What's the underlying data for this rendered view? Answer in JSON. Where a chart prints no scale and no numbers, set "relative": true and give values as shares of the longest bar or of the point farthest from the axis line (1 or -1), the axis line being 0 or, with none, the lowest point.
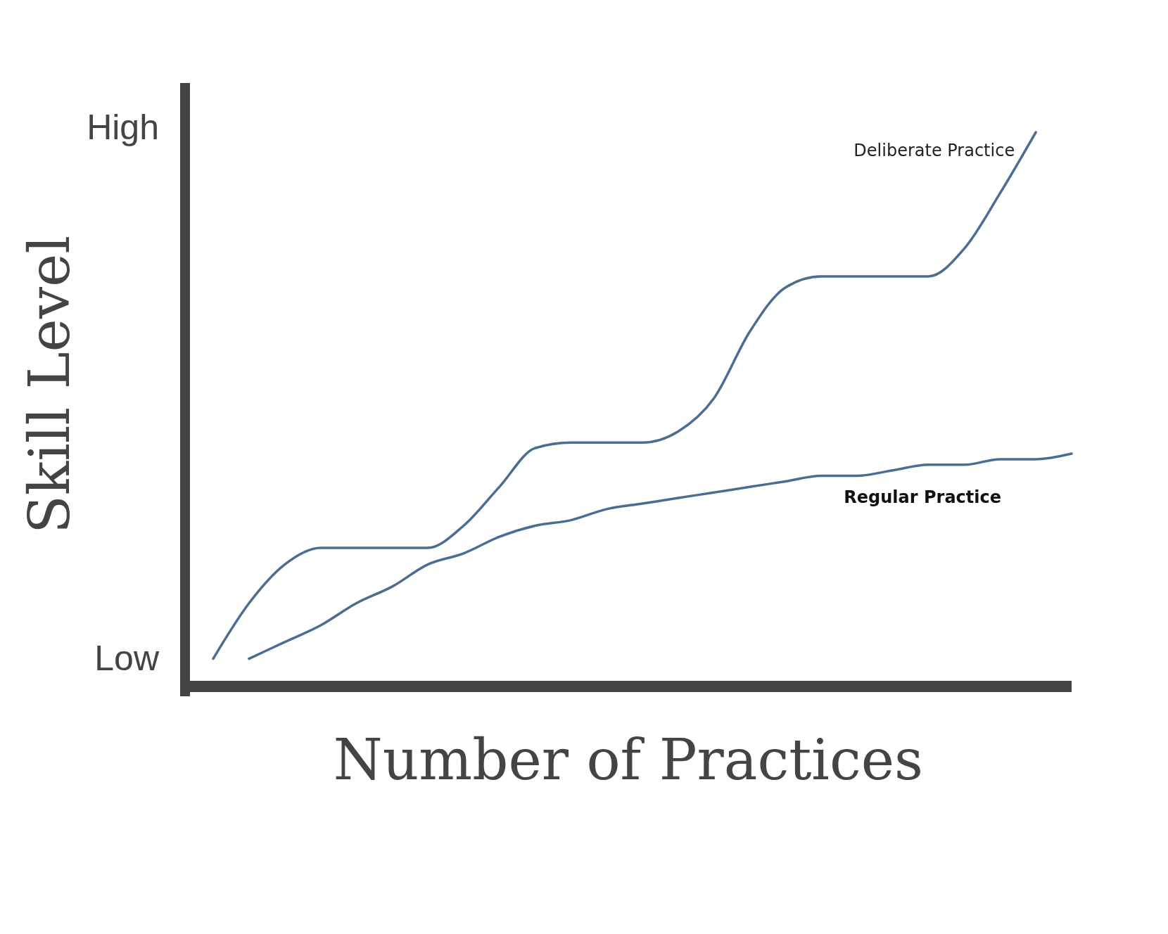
{
  "chart_data": {
    "type": "line",
    "relative": true,
    "xlabel": "Number of Practices",
    "ylabel": "Skill Level",
    "annotations": [
      "High",
      "Low"
    ],
    "categories": [
      null,
      null,
      null,
      null,
      null,
      null,
      null,
      null,
      null,
      null,
      null,
      null,
      null,
      null,
      null,
      null,
      null,
      null,
      null,
      null,
      null,
      null,
      null,
      null,
      null
    ],
    "series": [
      {
        "name": "Deliberate Practice",
        "color": "#4a6d94",
        "values": [
          0.05,
          0.15,
          0.22,
          0.25,
          0.25,
          0.25,
          0.25,
          0.29,
          0.36,
          0.43,
          0.44,
          0.44,
          0.44,
          0.46,
          0.52,
          0.64,
          0.72,
          0.74,
          0.74,
          0.74,
          0.74,
          0.79,
          0.89,
          1,
          null
        ]
      },
      {
        "name": "Regular Practice",
        "color": "#4a6d94",
        "values": [
          null,
          0.05,
          0.08,
          0.11,
          0.15,
          0.18,
          0.22,
          0.24,
          0.27,
          0.29,
          0.3,
          0.32,
          0.33,
          0.34,
          0.35,
          0.36,
          0.37,
          0.38,
          0.38,
          0.39,
          0.4,
          0.4,
          0.41,
          0.41,
          0.42
        ]
      }
    ]
  }
}
